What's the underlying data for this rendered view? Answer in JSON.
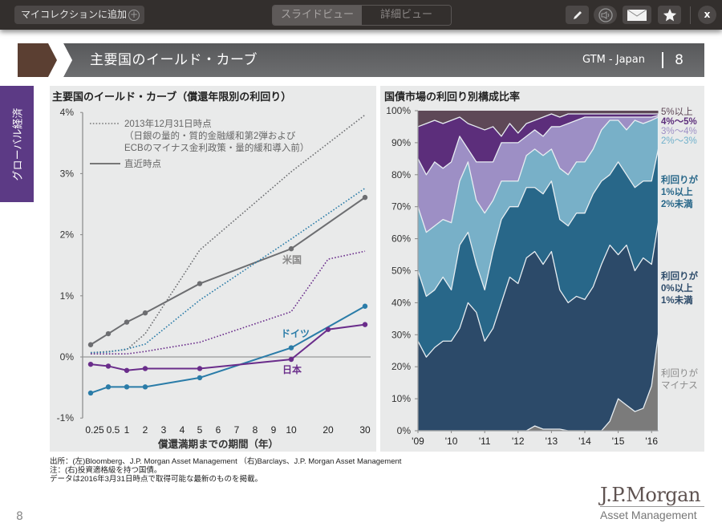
{
  "toolbar": {
    "add_collection": "マイコレクションに追加",
    "view_slide": "スライドビュー",
    "view_detail": "詳細ビュー",
    "close": "x",
    "icons": [
      "pencil-icon",
      "speaker-icon",
      "mail-icon",
      "star-icon"
    ]
  },
  "header": {
    "title": "主要国のイールド・カーブ",
    "series": "GTM - Japan",
    "page": "8"
  },
  "sidebar_tab": "グローバル経済",
  "colors": {
    "accent_purple": "#5c3a85",
    "header_brown": "#5b3f32",
    "us": "#6d6e71",
    "germany": "#2a7ca8",
    "japan": "#6a2d8b",
    "area_negative": "#7b7b7b",
    "area_0_1": "#2c4a69",
    "area_1_2": "#286789",
    "area_2_3": "#78b0c8",
    "area_3_4": "#9d8fc5",
    "area_4_5": "#5c2e7b",
    "area_5plus": "#5e4857"
  },
  "chart_data": [
    {
      "type": "line",
      "title": "主要国のイールド・カーブ（償還年限別の利回り）",
      "xlabel": "償還満期までの期間（年）",
      "ylabel": "",
      "x_ticks": [
        "0.25",
        "0.5",
        "1",
        "2",
        "3",
        "4",
        "5",
        "6",
        "7",
        "8",
        "9",
        "10",
        "20",
        "30"
      ],
      "y_ticks": [
        "4%",
        "3%",
        "2%",
        "1%",
        "0%",
        "-1%"
      ],
      "ylim": [
        -1,
        4
      ],
      "legend": {
        "dotted": "2013年12月31日時点",
        "dotted_note1": "（日銀の量的・質的金融緩和第2弾および",
        "dotted_note2": "ECBのマイナス金利政策・量的緩和導入前）",
        "solid": "直近時点"
      },
      "series": [
        {
          "name": "米国",
          "style": "solid",
          "x": [
            0.25,
            0.5,
            1,
            2,
            5,
            10,
            30
          ],
          "values": [
            0.2,
            0.38,
            0.57,
            0.72,
            1.2,
            1.77,
            2.61
          ]
        },
        {
          "name": "ドイツ",
          "style": "solid",
          "x": [
            0.25,
            0.5,
            1,
            2,
            5,
            10,
            30
          ],
          "values": [
            -0.59,
            -0.49,
            -0.49,
            -0.49,
            -0.34,
            0.15,
            0.83
          ]
        },
        {
          "name": "日本",
          "style": "solid",
          "x": [
            0.25,
            0.5,
            1,
            2,
            5,
            10,
            20,
            30
          ],
          "values": [
            -0.12,
            -0.15,
            -0.22,
            -0.19,
            -0.19,
            -0.04,
            0.45,
            0.53
          ]
        },
        {
          "name": "米国 2013",
          "style": "dotted",
          "x": [
            0.25,
            0.5,
            1,
            2,
            5,
            10,
            30
          ],
          "values": [
            0.07,
            0.09,
            0.12,
            0.38,
            1.75,
            3.03,
            3.96
          ]
        },
        {
          "name": "ドイツ 2013",
          "style": "dotted",
          "x": [
            0.25,
            0.5,
            1,
            2,
            5,
            10,
            30
          ],
          "values": [
            0.07,
            0.08,
            0.13,
            0.21,
            0.93,
            1.93,
            2.76
          ]
        },
        {
          "name": "日本 2013",
          "style": "dotted",
          "x": [
            0.25,
            0.5,
            1,
            2,
            5,
            10,
            20,
            30
          ],
          "values": [
            0.05,
            0.05,
            0.05,
            0.09,
            0.24,
            0.74,
            1.6,
            1.73
          ]
        }
      ],
      "annotations": [
        "米国",
        "ドイツ",
        "日本"
      ]
    },
    {
      "type": "area",
      "title": "国債市場の利回り別構成比率",
      "x_ticks": [
        "'09",
        "'10",
        "'11",
        "'12",
        "'13",
        "'14",
        "'15",
        "'16"
      ],
      "y_ticks": [
        "100%",
        "90%",
        "80%",
        "70%",
        "60%",
        "50%",
        "40%",
        "30%",
        "20%",
        "10%",
        "0%"
      ],
      "ylim": [
        0,
        100
      ],
      "x": [
        2009.0,
        2009.25,
        2009.5,
        2009.75,
        2010.0,
        2010.25,
        2010.5,
        2010.75,
        2011.0,
        2011.25,
        2011.5,
        2011.75,
        2012.0,
        2012.25,
        2012.5,
        2012.75,
        2013.0,
        2013.25,
        2013.5,
        2013.75,
        2014.0,
        2014.25,
        2014.5,
        2014.75,
        2015.0,
        2015.25,
        2015.5,
        2015.75,
        2016.0,
        2016.2
      ],
      "cumulative_series": [
        {
          "name": "利回りがマイナス",
          "values": [
            0,
            0,
            0,
            0,
            0,
            0,
            0,
            0,
            0,
            0,
            0,
            0,
            0,
            0,
            1.5,
            0.5,
            0.5,
            0.5,
            0,
            0,
            0,
            0,
            0,
            3,
            10,
            8,
            6,
            7,
            14,
            30
          ]
        },
        {
          "name": "利回りが0%以上1%未満",
          "values": [
            28,
            23,
            26,
            28,
            28,
            32,
            40,
            37,
            28,
            32,
            40,
            48,
            46,
            54,
            56,
            52,
            56,
            44,
            40,
            42,
            41,
            45,
            52,
            58,
            55,
            58,
            50,
            54,
            52,
            65
          ]
        },
        {
          "name": "利回りが1%以上2%未満",
          "values": [
            50,
            42,
            44,
            48,
            44,
            58,
            62,
            52,
            44,
            56,
            66,
            70,
            70,
            76,
            76,
            74,
            78,
            66,
            64,
            68,
            68,
            74,
            78,
            80,
            84,
            80,
            76,
            78,
            78,
            88
          ]
        },
        {
          "name": "2%～3%",
          "values": [
            70,
            62,
            64,
            66,
            65,
            78,
            84,
            72,
            68,
            72,
            78,
            78,
            78,
            86,
            88,
            86,
            88,
            82,
            80,
            84,
            84,
            88,
            94,
            97,
            97,
            94,
            97,
            96,
            97,
            98
          ]
        },
        {
          "name": "3%～4%",
          "values": [
            85,
            80,
            84,
            82,
            84,
            92,
            88,
            84,
            84,
            84,
            90,
            90,
            90,
            92,
            94,
            92,
            95,
            95,
            96,
            97,
            98,
            98,
            98,
            98,
            98,
            98,
            98,
            98,
            98,
            98.5
          ]
        },
        {
          "name": "4%～5%",
          "values": [
            95,
            96,
            97,
            96,
            97,
            98,
            96,
            95,
            94,
            95,
            92,
            96,
            93,
            96,
            97,
            98,
            99,
            98,
            99,
            99,
            99,
            99,
            99,
            99,
            99,
            99,
            99,
            99,
            99,
            99
          ]
        },
        {
          "name": "5%以上",
          "values": [
            100,
            100,
            100,
            100,
            100,
            100,
            100,
            100,
            100,
            100,
            100,
            100,
            100,
            100,
            100,
            100,
            100,
            100,
            100,
            100,
            100,
            100,
            100,
            100,
            100,
            100,
            100,
            100,
            100,
            100
          ]
        }
      ],
      "legend_labels": [
        "5%以上",
        "4%～5%",
        "3%～4%",
        "2%～3%",
        "利回りが",
        "1%以上",
        "2%未満",
        "利回りが",
        "0%以上",
        "1%未満",
        "利回りが",
        "マイナス"
      ]
    }
  ],
  "footnotes": [
    "出所：(左)Bloomberg、J.P. Morgan Asset Management （右)Barclays、J.P. Morgan Asset Management",
    "注：(右)投資適格級を持つ国債。",
    "データは2016年3月31日時点で取得可能な最新のものを掲載。"
  ],
  "page_number": "8",
  "logo": {
    "name": "J.P.Morgan",
    "sub": "Asset Management"
  }
}
